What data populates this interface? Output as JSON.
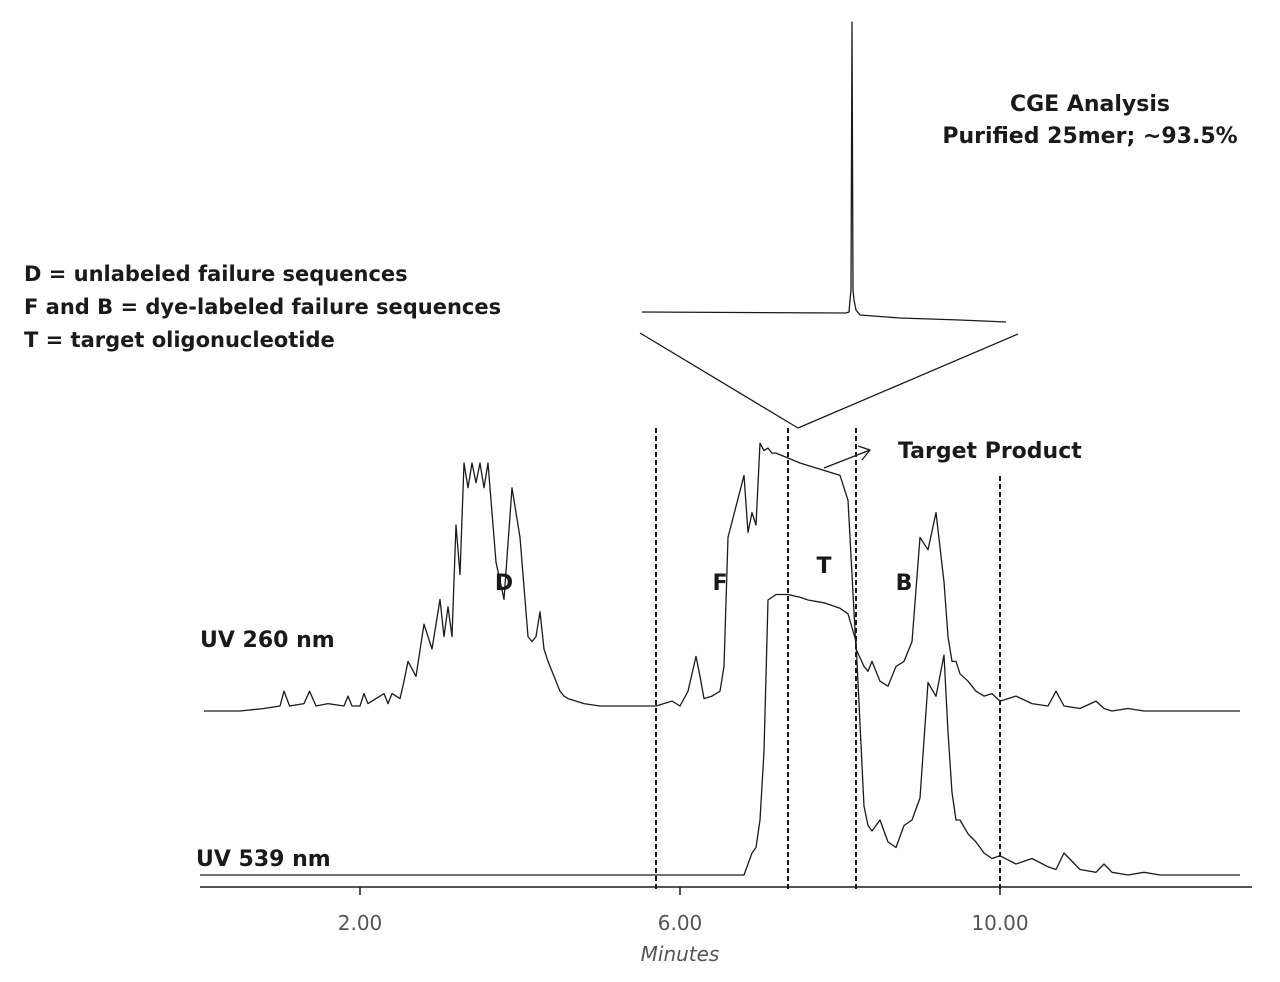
{
  "chart_data": {
    "type": "line",
    "title": "",
    "xlabel": "Minutes",
    "ylabel": "",
    "xlim": [
      0,
      13
    ],
    "x_ticks": [
      "2.00",
      "6.00",
      "10.00"
    ],
    "x_tick_values": [
      2,
      6,
      10
    ],
    "grid": false,
    "legend": {
      "position": "top-left",
      "entries": [
        "D = unlabeled failure sequences",
        "F and B = dye-labeled failure sequences",
        "T = target oligonucleotide"
      ]
    },
    "region_labels": [
      {
        "label": "D",
        "x": 3.8
      },
      {
        "label": "F",
        "x": 6.5
      },
      {
        "label": "T",
        "x": 7.8
      },
      {
        "label": "B",
        "x": 8.8
      }
    ],
    "fraction_cutoffs_minutes": [
      5.7,
      7.35,
      8.2,
      10.0
    ],
    "annotations": [
      "Target Product"
    ],
    "inset": {
      "title": "CGE Analysis",
      "subtitle": "Purified 25mer; ~93.5%"
    },
    "series": [
      {
        "name": "UV 260 nm",
        "x": [
          0.0,
          0.5,
          0.8,
          1.0,
          1.05,
          1.12,
          1.3,
          1.37,
          1.45,
          1.6,
          1.8,
          1.85,
          1.9,
          2.0,
          2.05,
          2.1,
          2.2,
          2.3,
          2.35,
          2.4,
          2.5,
          2.55,
          2.6,
          2.7,
          2.8,
          2.9,
          3.0,
          3.05,
          3.1,
          3.15,
          3.2,
          3.25,
          3.3,
          3.35,
          3.4,
          3.45,
          3.5,
          3.55,
          3.6,
          3.7,
          3.8,
          3.9,
          4.0,
          4.1,
          4.15,
          4.2,
          4.25,
          4.3,
          4.35,
          4.4,
          4.45,
          4.5,
          4.55,
          4.6,
          4.7,
          4.8,
          5.0,
          5.5,
          5.7,
          5.9,
          6.0,
          6.1,
          6.2,
          6.25,
          6.3,
          6.4,
          6.5,
          6.55,
          6.6,
          6.8,
          6.85,
          6.9,
          6.95,
          7.0,
          7.05,
          7.1,
          7.15,
          7.2,
          7.35,
          7.5,
          7.6,
          7.8,
          8.0,
          8.1,
          8.2,
          8.3,
          8.35,
          8.4,
          8.5,
          8.6,
          8.7,
          8.8,
          8.9,
          9.0,
          9.1,
          9.2,
          9.3,
          9.35,
          9.4,
          9.45,
          9.5,
          9.6,
          9.7,
          9.8,
          9.9,
          10.0,
          10.2,
          10.4,
          10.6,
          10.7,
          10.8,
          11.0,
          11.2,
          11.3,
          11.4,
          11.6,
          11.8,
          12.0,
          13.0
        ],
        "y": [
          0.0,
          0.0,
          0.01,
          0.02,
          0.08,
          0.02,
          0.03,
          0.08,
          0.02,
          0.03,
          0.02,
          0.06,
          0.02,
          0.02,
          0.07,
          0.03,
          0.05,
          0.07,
          0.03,
          0.07,
          0.05,
          0.12,
          0.2,
          0.14,
          0.35,
          0.25,
          0.45,
          0.3,
          0.42,
          0.3,
          0.75,
          0.55,
          1.0,
          0.9,
          1.0,
          0.92,
          1.0,
          0.9,
          1.0,
          0.6,
          0.45,
          0.9,
          0.7,
          0.3,
          0.28,
          0.3,
          0.4,
          0.25,
          0.2,
          0.16,
          0.12,
          0.08,
          0.06,
          0.05,
          0.04,
          0.03,
          0.02,
          0.02,
          0.02,
          0.04,
          0.02,
          0.08,
          0.22,
          0.14,
          0.05,
          0.06,
          0.08,
          0.18,
          0.7,
          0.95,
          0.72,
          0.8,
          0.75,
          1.08,
          1.05,
          1.06,
          1.04,
          1.04,
          1.02,
          1.0,
          0.99,
          0.97,
          0.95,
          0.85,
          0.25,
          0.18,
          0.16,
          0.2,
          0.12,
          0.1,
          0.18,
          0.2,
          0.28,
          0.7,
          0.65,
          0.8,
          0.52,
          0.3,
          0.2,
          0.2,
          0.15,
          0.12,
          0.08,
          0.06,
          0.07,
          0.04,
          0.06,
          0.03,
          0.02,
          0.08,
          0.02,
          0.01,
          0.04,
          0.01,
          0.0,
          0.01,
          0.0,
          0.0,
          0.0
        ]
      },
      {
        "name": "UV 539 nm",
        "x": [
          0.0,
          5.0,
          6.8,
          6.9,
          6.95,
          7.0,
          7.05,
          7.1,
          7.2,
          7.35,
          7.5,
          7.6,
          7.8,
          8.0,
          8.1,
          8.2,
          8.3,
          8.35,
          8.4,
          8.5,
          8.6,
          8.7,
          8.8,
          8.9,
          9.0,
          9.1,
          9.2,
          9.3,
          9.35,
          9.4,
          9.45,
          9.5,
          9.6,
          9.7,
          9.8,
          9.9,
          10.0,
          10.2,
          10.4,
          10.6,
          10.7,
          10.8,
          11.0,
          11.2,
          11.3,
          11.4,
          11.6,
          11.8,
          12.0,
          13.0
        ],
        "y": [
          0.0,
          0.0,
          0.0,
          0.08,
          0.1,
          0.2,
          0.45,
          1.0,
          1.02,
          1.02,
          1.01,
          1.0,
          0.99,
          0.97,
          0.95,
          0.85,
          0.25,
          0.18,
          0.16,
          0.2,
          0.12,
          0.1,
          0.18,
          0.2,
          0.28,
          0.7,
          0.65,
          0.8,
          0.52,
          0.3,
          0.2,
          0.2,
          0.15,
          0.12,
          0.08,
          0.06,
          0.07,
          0.04,
          0.06,
          0.03,
          0.02,
          0.08,
          0.02,
          0.01,
          0.04,
          0.01,
          0.0,
          0.01,
          0.0,
          0.0
        ]
      }
    ]
  }
}
